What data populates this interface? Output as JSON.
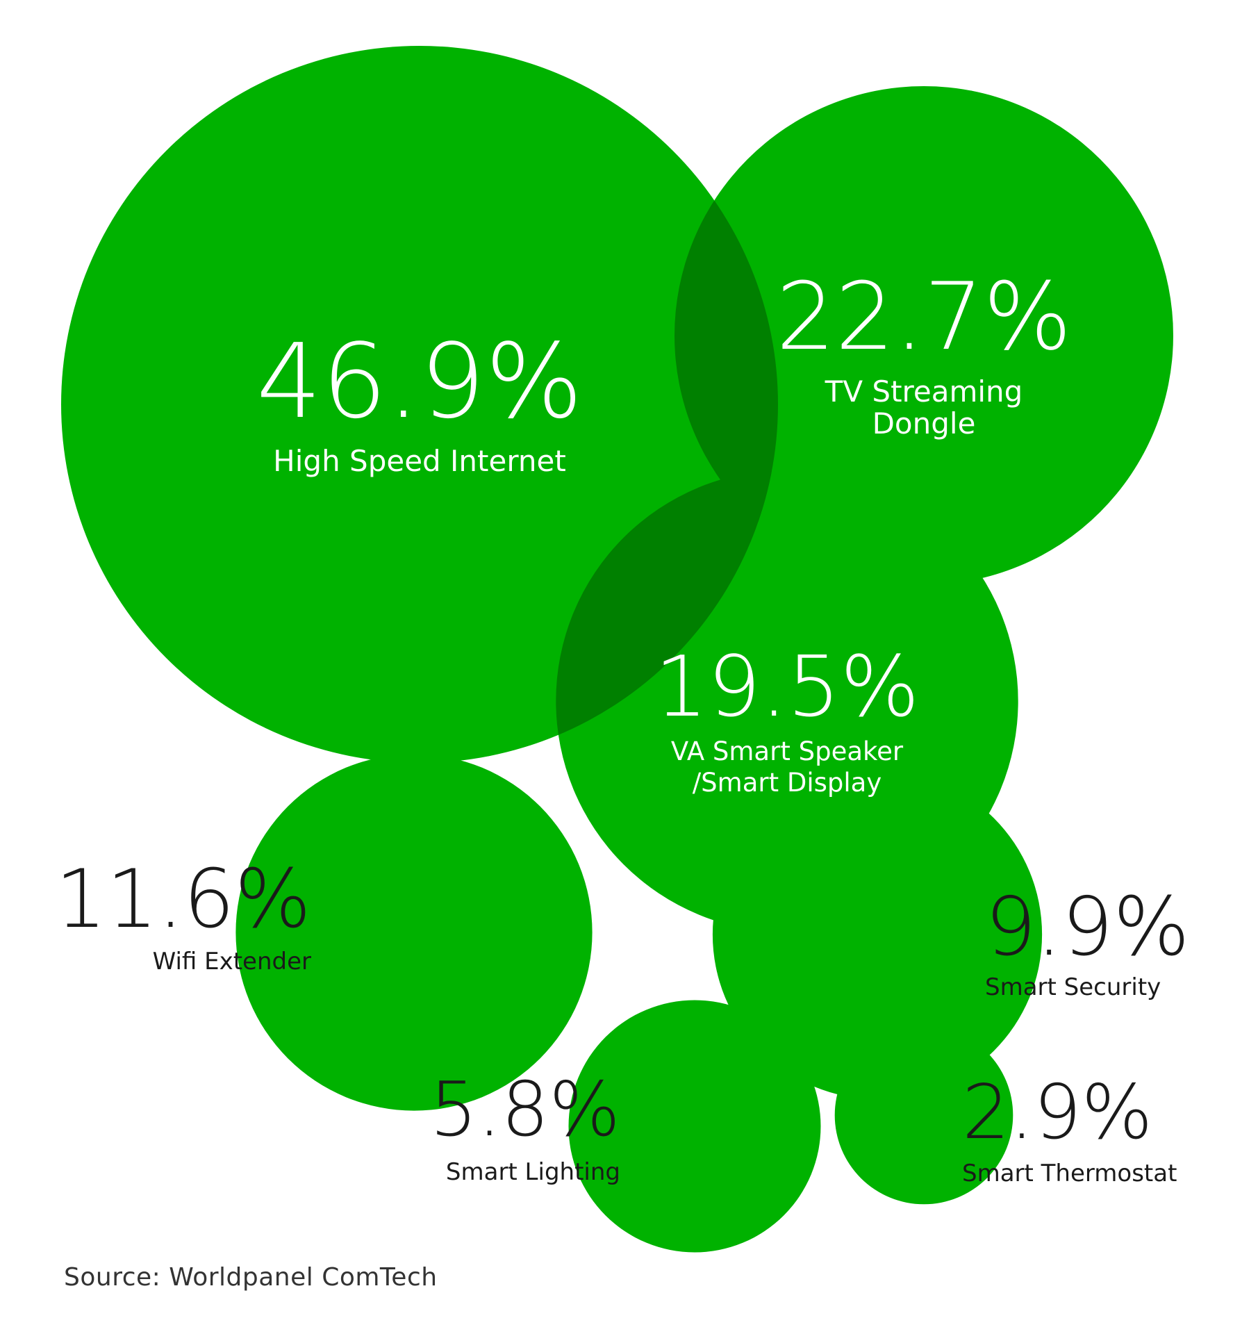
{
  "colors": {
    "bubble": "#00b200",
    "overlap": "#008000",
    "inside_text": "#ffffff",
    "outside_text": "#1a1a1a",
    "source_text": "#333333"
  },
  "chart_data": {
    "type": "bubble",
    "unit": "%",
    "items": [
      {
        "name": "High Speed Internet",
        "label_lines": [
          "High Speed Internet"
        ],
        "value": 46.9,
        "value_label": "46.9%"
      },
      {
        "name": "TV Streaming Dongle",
        "label_lines": [
          "TV Streaming",
          "Dongle"
        ],
        "value": 22.7,
        "value_label": "22.7%"
      },
      {
        "name": "VA Smart Speaker /Smart Display",
        "label_lines": [
          "VA Smart Speaker",
          "/Smart Display"
        ],
        "value": 19.5,
        "value_label": "19.5%"
      },
      {
        "name": "Wifi Extender",
        "label_lines": [
          "Wifi Extender"
        ],
        "value": 11.6,
        "value_label": "11.6%"
      },
      {
        "name": "Smart Security",
        "label_lines": [
          "Smart Security"
        ],
        "value": 9.9,
        "value_label": "9.9%"
      },
      {
        "name": "Smart Lighting",
        "label_lines": [
          "Smart Lighting"
        ],
        "value": 5.8,
        "value_label": "5.8%"
      },
      {
        "name": "Smart Thermostat",
        "label_lines": [
          "Smart Thermostat"
        ],
        "value": 2.9,
        "value_label": "2.9%"
      }
    ]
  },
  "source": "Source: Worldpanel ComTech"
}
